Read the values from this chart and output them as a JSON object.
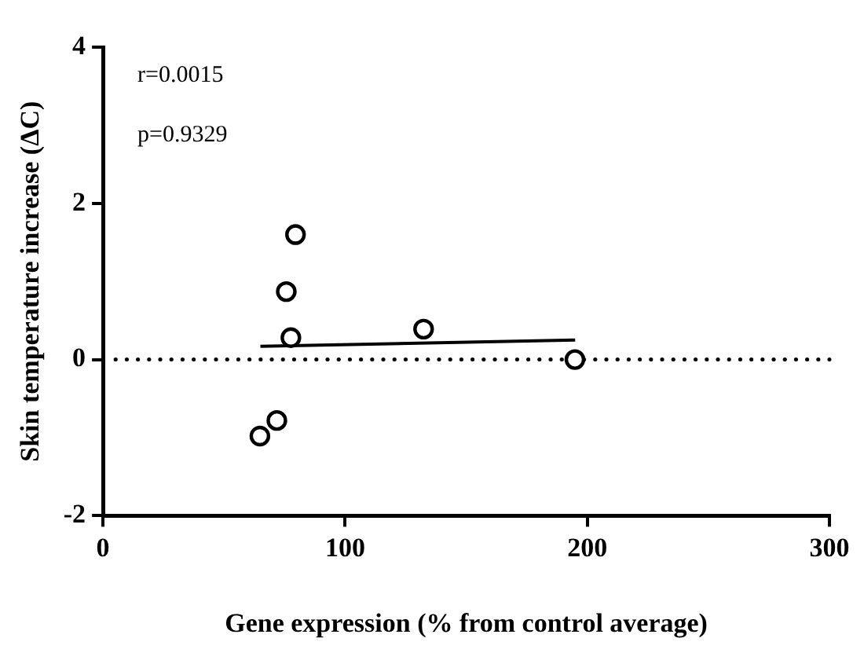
{
  "chart_data": {
    "type": "scatter",
    "xlabel": "Gene expression (% from control average)",
    "ylabel": "Skin temperature increase (ΔC)",
    "annotations": [
      "r=0.0015",
      "p=0.9329"
    ],
    "series": [
      {
        "type": "scatter",
        "color": "#000000",
        "x": [
          79.5,
          75.7,
          77.6,
          132.4,
          194.9,
          71.8,
          64.8
        ],
        "values": [
          1.6,
          0.87,
          0.28,
          0.39,
          0,
          -0.78,
          -0.98
        ]
      },
      {
        "type": "line",
        "color": "#000000",
        "marker": "none",
        "x": [
          65,
          195
        ],
        "values": [
          0.17,
          0.25
        ]
      }
    ],
    "xlim": [
      0,
      300
    ],
    "xticks": [
      0,
      100,
      200,
      300
    ],
    "ylim": [
      -2,
      4
    ],
    "yticks": [
      -2,
      0,
      2,
      4
    ],
    "ref_lines": [
      {
        "axis": "y",
        "value": 0,
        "color": "#000000",
        "line_style": "dotted"
      }
    ],
    "grid": false,
    "legend": false,
    "marker": "circle"
  }
}
